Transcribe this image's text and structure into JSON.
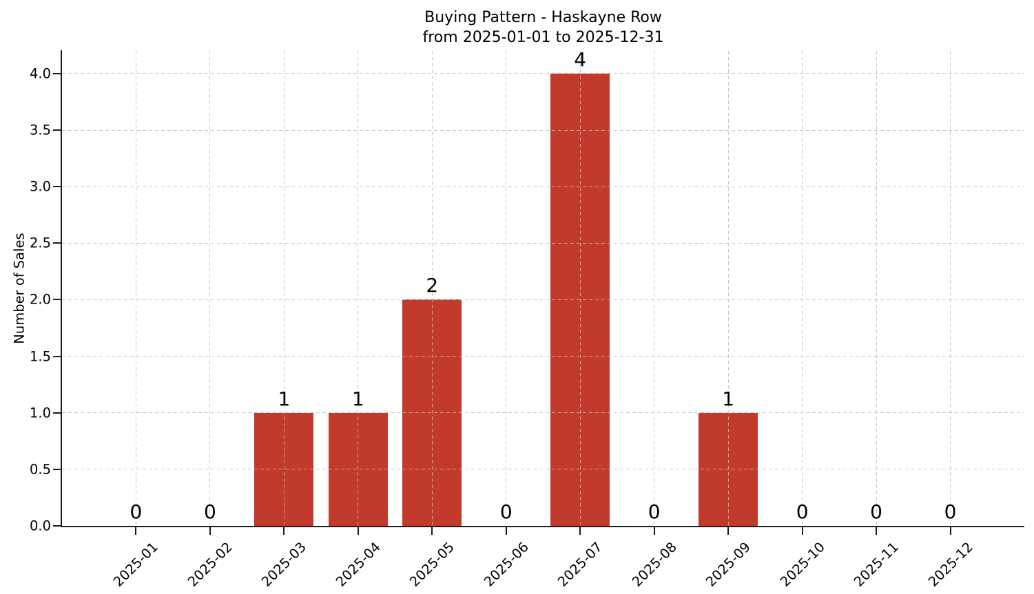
{
  "chart_data": {
    "type": "bar",
    "title": "Buying Pattern - Haskayne Row",
    "subtitle": "from 2025-01-01 to 2025-12-31",
    "categories": [
      "2025-01",
      "2025-02",
      "2025-03",
      "2025-04",
      "2025-05",
      "2025-06",
      "2025-07",
      "2025-08",
      "2025-09",
      "2025-10",
      "2025-11",
      "2025-12"
    ],
    "values": [
      0,
      0,
      1,
      1,
      2,
      0,
      4,
      0,
      1,
      0,
      0,
      0
    ],
    "bar_value_labels": [
      "0",
      "0",
      "1",
      "1",
      "2",
      "0",
      "4",
      "0",
      "1",
      "0",
      "0",
      "0"
    ],
    "xlabel": "",
    "ylabel": "Number of Sales",
    "ylim": [
      0,
      4.2
    ],
    "yticks": [
      0.0,
      0.5,
      1.0,
      1.5,
      2.0,
      2.5,
      3.0,
      3.5,
      4.0
    ],
    "ytick_labels": [
      "0.0",
      "0.5",
      "1.0",
      "1.5",
      "2.0",
      "2.5",
      "3.0",
      "3.5",
      "4.0"
    ],
    "bar_color": "#c23a2b",
    "axis_color": "#1a1a1a",
    "grid": true,
    "grid_style": "dashed",
    "xtick_rotation_deg": 45,
    "legend_position": "none"
  }
}
